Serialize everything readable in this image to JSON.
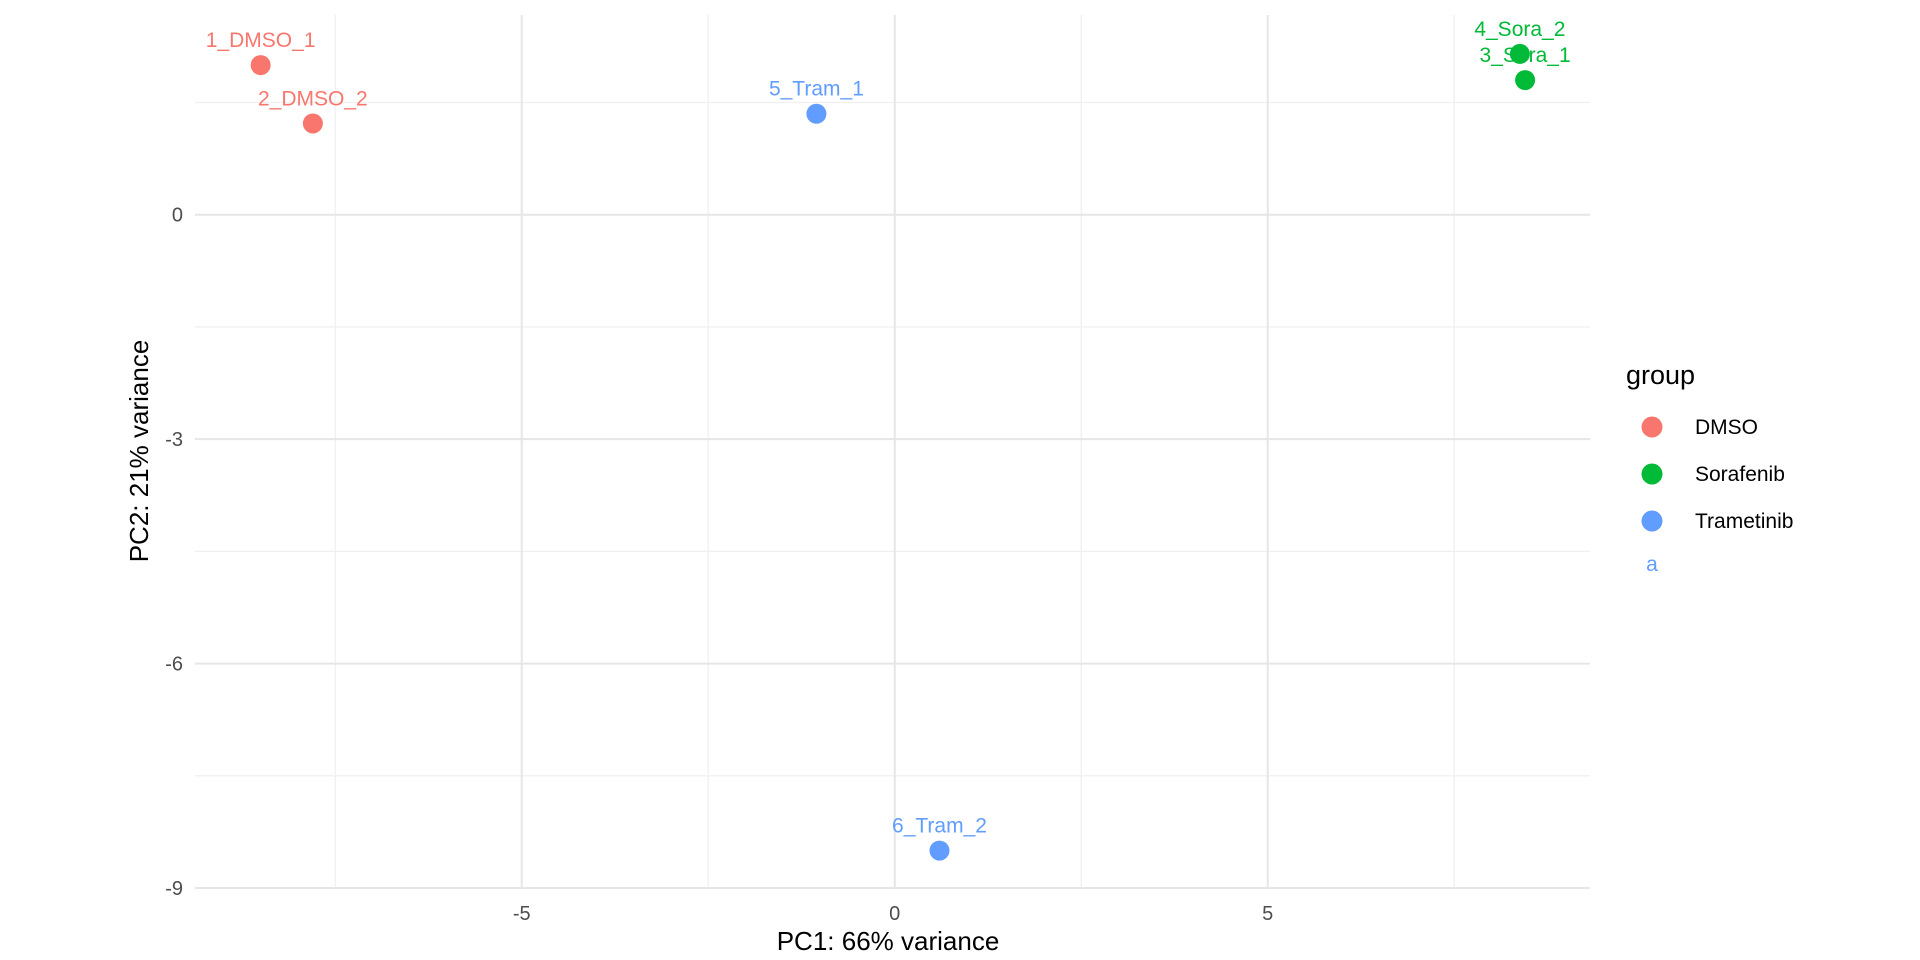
{
  "chart_data": {
    "type": "scatter",
    "xlabel": "PC1: 66% variance",
    "ylabel": "PC2: 21% variance",
    "xlim": [
      -9.38,
      9.32
    ],
    "ylim": [
      -9.0,
      2.67
    ],
    "x_ticks": [
      -5,
      0,
      5
    ],
    "y_ticks": [
      0,
      -3,
      -6,
      -9
    ],
    "x_tick_labels": [
      "-5",
      "0",
      "5"
    ],
    "y_tick_labels": [
      "0",
      "-3",
      "-6",
      "-9"
    ],
    "grid": true,
    "legend_position": "right",
    "legend": {
      "title": "group",
      "entries": [
        {
          "name": "DMSO",
          "color": "#F8766D"
        },
        {
          "name": "Sorafenib",
          "color": "#00BA38"
        },
        {
          "name": "Trametinib",
          "color": "#619CFF"
        }
      ],
      "text_key": "a"
    },
    "points": [
      {
        "label": "1_DMSO_1",
        "group": "DMSO",
        "x": -8.5,
        "y": 2.0
      },
      {
        "label": "2_DMSO_2",
        "group": "DMSO",
        "x": -7.8,
        "y": 1.22
      },
      {
        "label": "3_Sora_1",
        "group": "Sorafenib",
        "x": 8.45,
        "y": 1.8
      },
      {
        "label": "4_Sora_2",
        "group": "Sorafenib",
        "x": 8.38,
        "y": 2.15
      },
      {
        "label": "5_Tram_1",
        "group": "Trametinib",
        "x": -1.05,
        "y": 1.35
      },
      {
        "label": "6_Tram_2",
        "group": "Trametinib",
        "x": 0.6,
        "y": -8.5
      }
    ]
  }
}
